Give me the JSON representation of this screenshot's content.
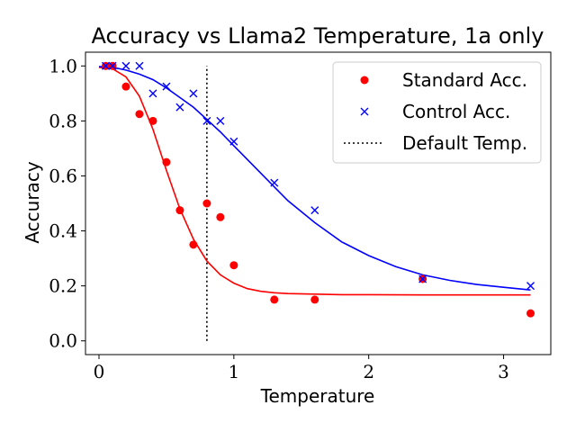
{
  "chart_data": {
    "type": "scatter",
    "title": "Accuracy vs Llama2 Temperature, 1a only",
    "xlabel": "Temperature",
    "ylabel": "Accuracy",
    "xlim": [
      -0.1,
      3.35
    ],
    "ylim": [
      -0.05,
      1.05
    ],
    "xticks": [
      0,
      1,
      2,
      3
    ],
    "yticks": [
      0.0,
      0.2,
      0.4,
      0.6,
      0.8,
      1.0
    ],
    "xtick_labels": [
      "0",
      "1",
      "2",
      "3"
    ],
    "ytick_labels": [
      "0.0",
      "0.2",
      "0.4",
      "0.6",
      "0.8",
      "1.0"
    ],
    "grid": false,
    "legend_position": "top-right",
    "series": [
      {
        "name": "Standard Acc.",
        "marker": "circle",
        "color": "#ff0000",
        "x": [
          0.05,
          0.1,
          0.2,
          0.3,
          0.4,
          0.5,
          0.6,
          0.7,
          0.8,
          0.9,
          1.0,
          1.3,
          1.6,
          2.4,
          3.2
        ],
        "y": [
          1.0,
          1.0,
          0.925,
          0.825,
          0.8,
          0.65,
          0.475,
          0.35,
          0.5,
          0.45,
          0.275,
          0.15,
          0.15,
          0.225,
          0.1
        ],
        "fit": {
          "x": [
            0.0,
            0.1,
            0.2,
            0.3,
            0.4,
            0.5,
            0.6,
            0.7,
            0.8,
            0.9,
            1.0,
            1.1,
            1.2,
            1.3,
            1.4,
            1.6,
            1.8,
            2.0,
            2.4,
            2.8,
            3.2
          ],
          "y": [
            0.995,
            0.99,
            0.96,
            0.89,
            0.77,
            0.62,
            0.48,
            0.37,
            0.29,
            0.24,
            0.21,
            0.19,
            0.18,
            0.175,
            0.172,
            0.17,
            0.168,
            0.168,
            0.167,
            0.167,
            0.167
          ]
        }
      },
      {
        "name": "Control Acc.",
        "marker": "x",
        "color": "#0000ff",
        "x": [
          0.05,
          0.1,
          0.2,
          0.3,
          0.4,
          0.5,
          0.6,
          0.7,
          0.8,
          0.9,
          1.0,
          1.3,
          1.6,
          2.4,
          3.2
        ],
        "y": [
          1.0,
          1.0,
          1.0,
          1.0,
          0.9,
          0.925,
          0.85,
          0.9,
          0.8,
          0.8,
          0.725,
          0.575,
          0.475,
          0.225,
          0.2
        ],
        "fit": {
          "x": [
            0.0,
            0.1,
            0.2,
            0.3,
            0.4,
            0.5,
            0.6,
            0.7,
            0.8,
            0.9,
            1.0,
            1.2,
            1.4,
            1.6,
            1.8,
            2.0,
            2.2,
            2.4,
            2.6,
            2.8,
            3.0,
            3.2
          ],
          "y": [
            0.998,
            0.995,
            0.985,
            0.97,
            0.95,
            0.92,
            0.885,
            0.85,
            0.805,
            0.76,
            0.71,
            0.61,
            0.51,
            0.43,
            0.36,
            0.31,
            0.27,
            0.24,
            0.22,
            0.205,
            0.195,
            0.185
          ]
        }
      }
    ],
    "vline": {
      "name": "Default Temp.",
      "x": 0.8,
      "ymin": 0.0,
      "ymax": 1.0,
      "style": "dotted",
      "color": "#000000"
    }
  }
}
